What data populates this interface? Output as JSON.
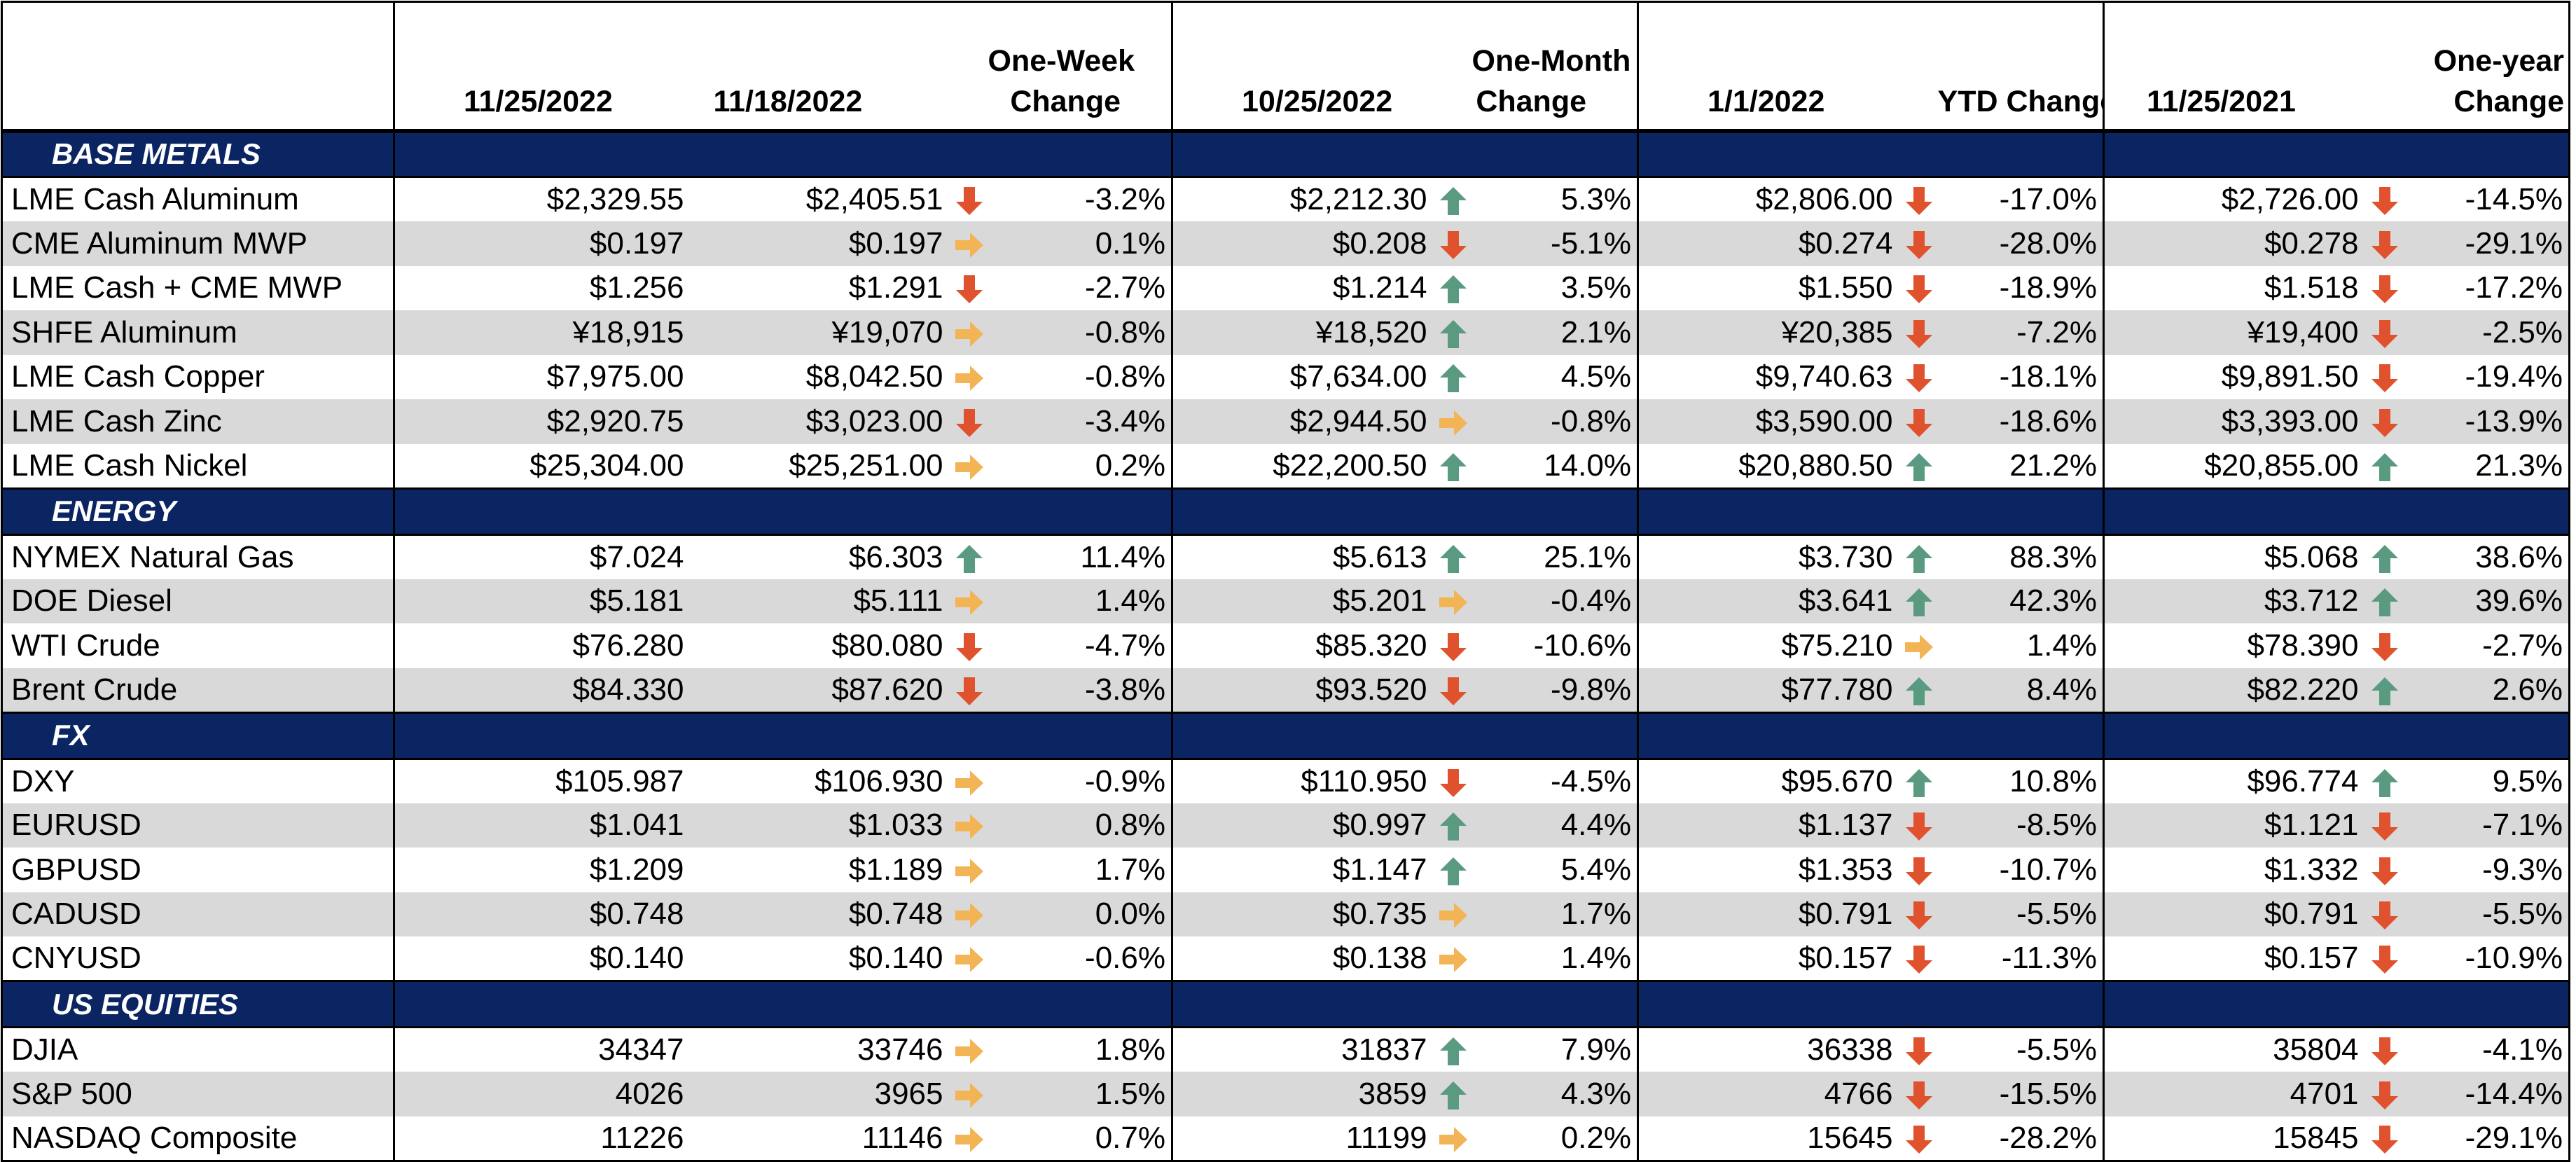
{
  "colors": {
    "section_bg": "#0b2562",
    "row_shade": "#d9d9d9",
    "arrow_down": "#e0512d",
    "arrow_up": "#5a9a80",
    "arrow_flat": "#f2b455"
  },
  "header": {
    "d1": "11/25/2022",
    "d2": "11/18/2022",
    "c1a": "One-Week",
    "c1b": "Change",
    "d3": "10/25/2022",
    "c2a": "One-Month",
    "c2b": "Change",
    "d4": "1/1/2022",
    "c3": "YTD Change",
    "d5": "11/25/2021",
    "c4a": "One-year",
    "c4b": "Change"
  },
  "sections": [
    {
      "title": "BASE METALS",
      "rows": [
        {
          "name": "LME Cash Aluminum",
          "v0": "$2,329.55",
          "v1": "$2,405.51",
          "a1": "down",
          "p1": "-3.2%",
          "v2": "$2,212.30",
          "a2": "up",
          "p2": "5.3%",
          "v3": "$2,806.00",
          "a3": "down",
          "p3": "-17.0%",
          "v4": "$2,726.00",
          "a4": "down",
          "p4": "-14.5%"
        },
        {
          "name": "CME Aluminum MWP",
          "v0": "$0.197",
          "v1": "$0.197",
          "a1": "flat",
          "p1": "0.1%",
          "v2": "$0.208",
          "a2": "down",
          "p2": "-5.1%",
          "v3": "$0.274",
          "a3": "down",
          "p3": "-28.0%",
          "v4": "$0.278",
          "a4": "down",
          "p4": "-29.1%"
        },
        {
          "name": "LME Cash + CME MWP",
          "v0": "$1.256",
          "v1": "$1.291",
          "a1": "down",
          "p1": "-2.7%",
          "v2": "$1.214",
          "a2": "up",
          "p2": "3.5%",
          "v3": "$1.550",
          "a3": "down",
          "p3": "-18.9%",
          "v4": "$1.518",
          "a4": "down",
          "p4": "-17.2%"
        },
        {
          "name": "SHFE Aluminum",
          "v0": "¥18,915",
          "v1": "¥19,070",
          "a1": "flat",
          "p1": "-0.8%",
          "v2": "¥18,520",
          "a2": "up",
          "p2": "2.1%",
          "v3": "¥20,385",
          "a3": "down",
          "p3": "-7.2%",
          "v4": "¥19,400",
          "a4": "down",
          "p4": "-2.5%"
        },
        {
          "name": "LME Cash Copper",
          "v0": "$7,975.00",
          "v1": "$8,042.50",
          "a1": "flat",
          "p1": "-0.8%",
          "v2": "$7,634.00",
          "a2": "up",
          "p2": "4.5%",
          "v3": "$9,740.63",
          "a3": "down",
          "p3": "-18.1%",
          "v4": "$9,891.50",
          "a4": "down",
          "p4": "-19.4%"
        },
        {
          "name": "LME Cash Zinc",
          "v0": "$2,920.75",
          "v1": "$3,023.00",
          "a1": "down",
          "p1": "-3.4%",
          "v2": "$2,944.50",
          "a2": "flat",
          "p2": "-0.8%",
          "v3": "$3,590.00",
          "a3": "down",
          "p3": "-18.6%",
          "v4": "$3,393.00",
          "a4": "down",
          "p4": "-13.9%"
        },
        {
          "name": "LME Cash Nickel",
          "v0": "$25,304.00",
          "v1": "$25,251.00",
          "a1": "flat",
          "p1": "0.2%",
          "v2": "$22,200.50",
          "a2": "up",
          "p2": "14.0%",
          "v3": "$20,880.50",
          "a3": "up",
          "p3": "21.2%",
          "v4": "$20,855.00",
          "a4": "up",
          "p4": "21.3%"
        }
      ]
    },
    {
      "title": "ENERGY",
      "rows": [
        {
          "name": "NYMEX Natural Gas",
          "v0": "$7.024",
          "v1": "$6.303",
          "a1": "up",
          "p1": "11.4%",
          "v2": "$5.613",
          "a2": "up",
          "p2": "25.1%",
          "v3": "$3.730",
          "a3": "up",
          "p3": "88.3%",
          "v4": "$5.068",
          "a4": "up",
          "p4": "38.6%"
        },
        {
          "name": "DOE Diesel",
          "v0": "$5.181",
          "v1": "$5.111",
          "a1": "flat",
          "p1": "1.4%",
          "v2": "$5.201",
          "a2": "flat",
          "p2": "-0.4%",
          "v3": "$3.641",
          "a3": "up",
          "p3": "42.3%",
          "v4": "$3.712",
          "a4": "up",
          "p4": "39.6%"
        },
        {
          "name": "WTI Crude",
          "v0": "$76.280",
          "v1": "$80.080",
          "a1": "down",
          "p1": "-4.7%",
          "v2": "$85.320",
          "a2": "down",
          "p2": "-10.6%",
          "v3": "$75.210",
          "a3": "flat",
          "p3": "1.4%",
          "v4": "$78.390",
          "a4": "down",
          "p4": "-2.7%"
        },
        {
          "name": "Brent Crude",
          "v0": "$84.330",
          "v1": "$87.620",
          "a1": "down",
          "p1": "-3.8%",
          "v2": "$93.520",
          "a2": "down",
          "p2": "-9.8%",
          "v3": "$77.780",
          "a3": "up",
          "p3": "8.4%",
          "v4": "$82.220",
          "a4": "up",
          "p4": "2.6%"
        }
      ]
    },
    {
      "title": "FX",
      "rows": [
        {
          "name": "DXY",
          "v0": "$105.987",
          "v1": "$106.930",
          "a1": "flat",
          "p1": "-0.9%",
          "v2": "$110.950",
          "a2": "down",
          "p2": "-4.5%",
          "v3": "$95.670",
          "a3": "up",
          "p3": "10.8%",
          "v4": "$96.774",
          "a4": "up",
          "p4": "9.5%"
        },
        {
          "name": "EURUSD",
          "v0": "$1.041",
          "v1": "$1.033",
          "a1": "flat",
          "p1": "0.8%",
          "v2": "$0.997",
          "a2": "up",
          "p2": "4.4%",
          "v3": "$1.137",
          "a3": "down",
          "p3": "-8.5%",
          "v4": "$1.121",
          "a4": "down",
          "p4": "-7.1%"
        },
        {
          "name": "GBPUSD",
          "v0": "$1.209",
          "v1": "$1.189",
          "a1": "flat",
          "p1": "1.7%",
          "v2": "$1.147",
          "a2": "up",
          "p2": "5.4%",
          "v3": "$1.353",
          "a3": "down",
          "p3": "-10.7%",
          "v4": "$1.332",
          "a4": "down",
          "p4": "-9.3%"
        },
        {
          "name": "CADUSD",
          "v0": "$0.748",
          "v1": "$0.748",
          "a1": "flat",
          "p1": "0.0%",
          "v2": "$0.735",
          "a2": "flat",
          "p2": "1.7%",
          "v3": "$0.791",
          "a3": "down",
          "p3": "-5.5%",
          "v4": "$0.791",
          "a4": "down",
          "p4": "-5.5%"
        },
        {
          "name": "CNYUSD",
          "v0": "$0.140",
          "v1": "$0.140",
          "a1": "flat",
          "p1": "-0.6%",
          "v2": "$0.138",
          "a2": "flat",
          "p2": "1.4%",
          "v3": "$0.157",
          "a3": "down",
          "p3": "-11.3%",
          "v4": "$0.157",
          "a4": "down",
          "p4": "-10.9%"
        }
      ]
    },
    {
      "title": "US EQUITIES",
      "rows": [
        {
          "name": "DJIA",
          "v0": "34347",
          "v1": "33746",
          "a1": "flat",
          "p1": "1.8%",
          "v2": "31837",
          "a2": "up",
          "p2": "7.9%",
          "v3": "36338",
          "a3": "down",
          "p3": "-5.5%",
          "v4": "35804",
          "a4": "down",
          "p4": "-4.1%"
        },
        {
          "name": "S&P 500",
          "v0": "4026",
          "v1": "3965",
          "a1": "flat",
          "p1": "1.5%",
          "v2": "3859",
          "a2": "up",
          "p2": "4.3%",
          "v3": "4766",
          "a3": "down",
          "p3": "-15.5%",
          "v4": "4701",
          "a4": "down",
          "p4": "-14.4%"
        },
        {
          "name": "NASDAQ Composite",
          "v0": "11226",
          "v1": "11146",
          "a1": "flat",
          "p1": "0.7%",
          "v2": "11199",
          "a2": "flat",
          "p2": "0.2%",
          "v3": "15645",
          "a3": "down",
          "p3": "-28.2%",
          "v4": "15845",
          "a4": "down",
          "p4": "-29.1%"
        }
      ]
    }
  ]
}
